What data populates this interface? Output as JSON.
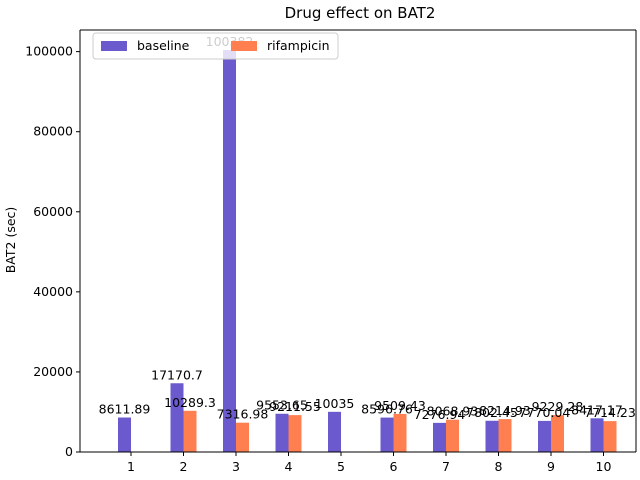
{
  "chart_data": {
    "type": "bar",
    "title": "Drug effect on BAT2",
    "xlabel": "",
    "ylabel": "BAT2 (sec)",
    "categories": [
      "1",
      "2",
      "3",
      "4",
      "5",
      "6",
      "7",
      "8",
      "9",
      "10"
    ],
    "series": [
      {
        "name": "baseline",
        "color": "#6a5acd",
        "values": [
          8611.89,
          17170.7,
          100382,
          9553.65,
          10035,
          8596.76,
          7276.94,
          7802.45,
          7770.04,
          8417.17
        ],
        "labels": [
          "8611.89",
          "17170.7",
          "100382",
          "9553.65",
          "10035",
          "8596.76",
          "7276.94",
          "7802.45",
          "7770.04",
          "8417.17"
        ]
      },
      {
        "name": "rifampicin",
        "color": "#ff7f50",
        "values": [
          null,
          10289.3,
          7316.98,
          9211.55,
          null,
          9509.43,
          8068.93,
          8214.93,
          9229.28,
          7714.23
        ],
        "labels": [
          "",
          "10289.3",
          "7316.98",
          "9211.55",
          "",
          "9509.43",
          "8068.93",
          "8214.93",
          "9229.28",
          "7714.23"
        ]
      }
    ],
    "yticks": [
      0,
      20000,
      40000,
      60000,
      80000,
      100000
    ],
    "ylim": [
      0,
      105402
    ],
    "grid": false,
    "legend_position": "top-left"
  }
}
